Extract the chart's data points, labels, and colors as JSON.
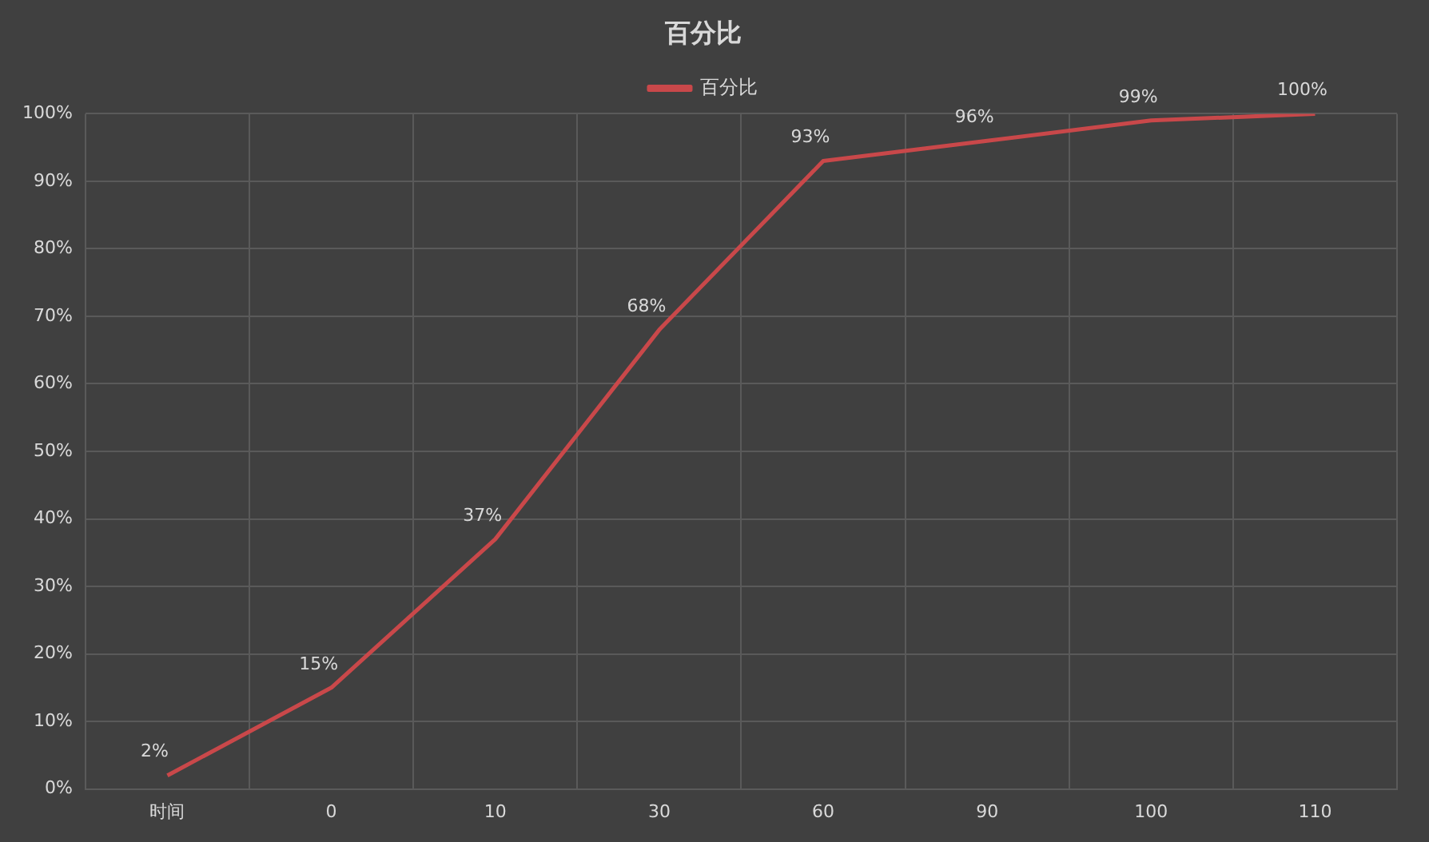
{
  "chart_data": {
    "type": "line",
    "title": "百分比",
    "categories": [
      "时间",
      "0",
      "10",
      "30",
      "60",
      "90",
      "100",
      "110"
    ],
    "series": [
      {
        "name": "百分比",
        "color": "#c9484a",
        "values": [
          2,
          15,
          37,
          68,
          93,
          96,
          99,
          100
        ],
        "value_labels": [
          "2%",
          "15%",
          "37%",
          "68%",
          "93%",
          "96%",
          "99%",
          "100%"
        ]
      }
    ],
    "ylim": [
      0,
      100
    ],
    "yticks": [
      {
        "value": 0,
        "label": "0%"
      },
      {
        "value": 10,
        "label": "10%"
      },
      {
        "value": 20,
        "label": "20%"
      },
      {
        "value": 30,
        "label": "30%"
      },
      {
        "value": 40,
        "label": "40%"
      },
      {
        "value": 50,
        "label": "50%"
      },
      {
        "value": 60,
        "label": "60%"
      },
      {
        "value": 70,
        "label": "70%"
      },
      {
        "value": 80,
        "label": "80%"
      },
      {
        "value": 90,
        "label": "90%"
      },
      {
        "value": 100,
        "label": "100%"
      }
    ],
    "grid": true,
    "legend": "top",
    "marker": "none",
    "line_style": "solid"
  }
}
